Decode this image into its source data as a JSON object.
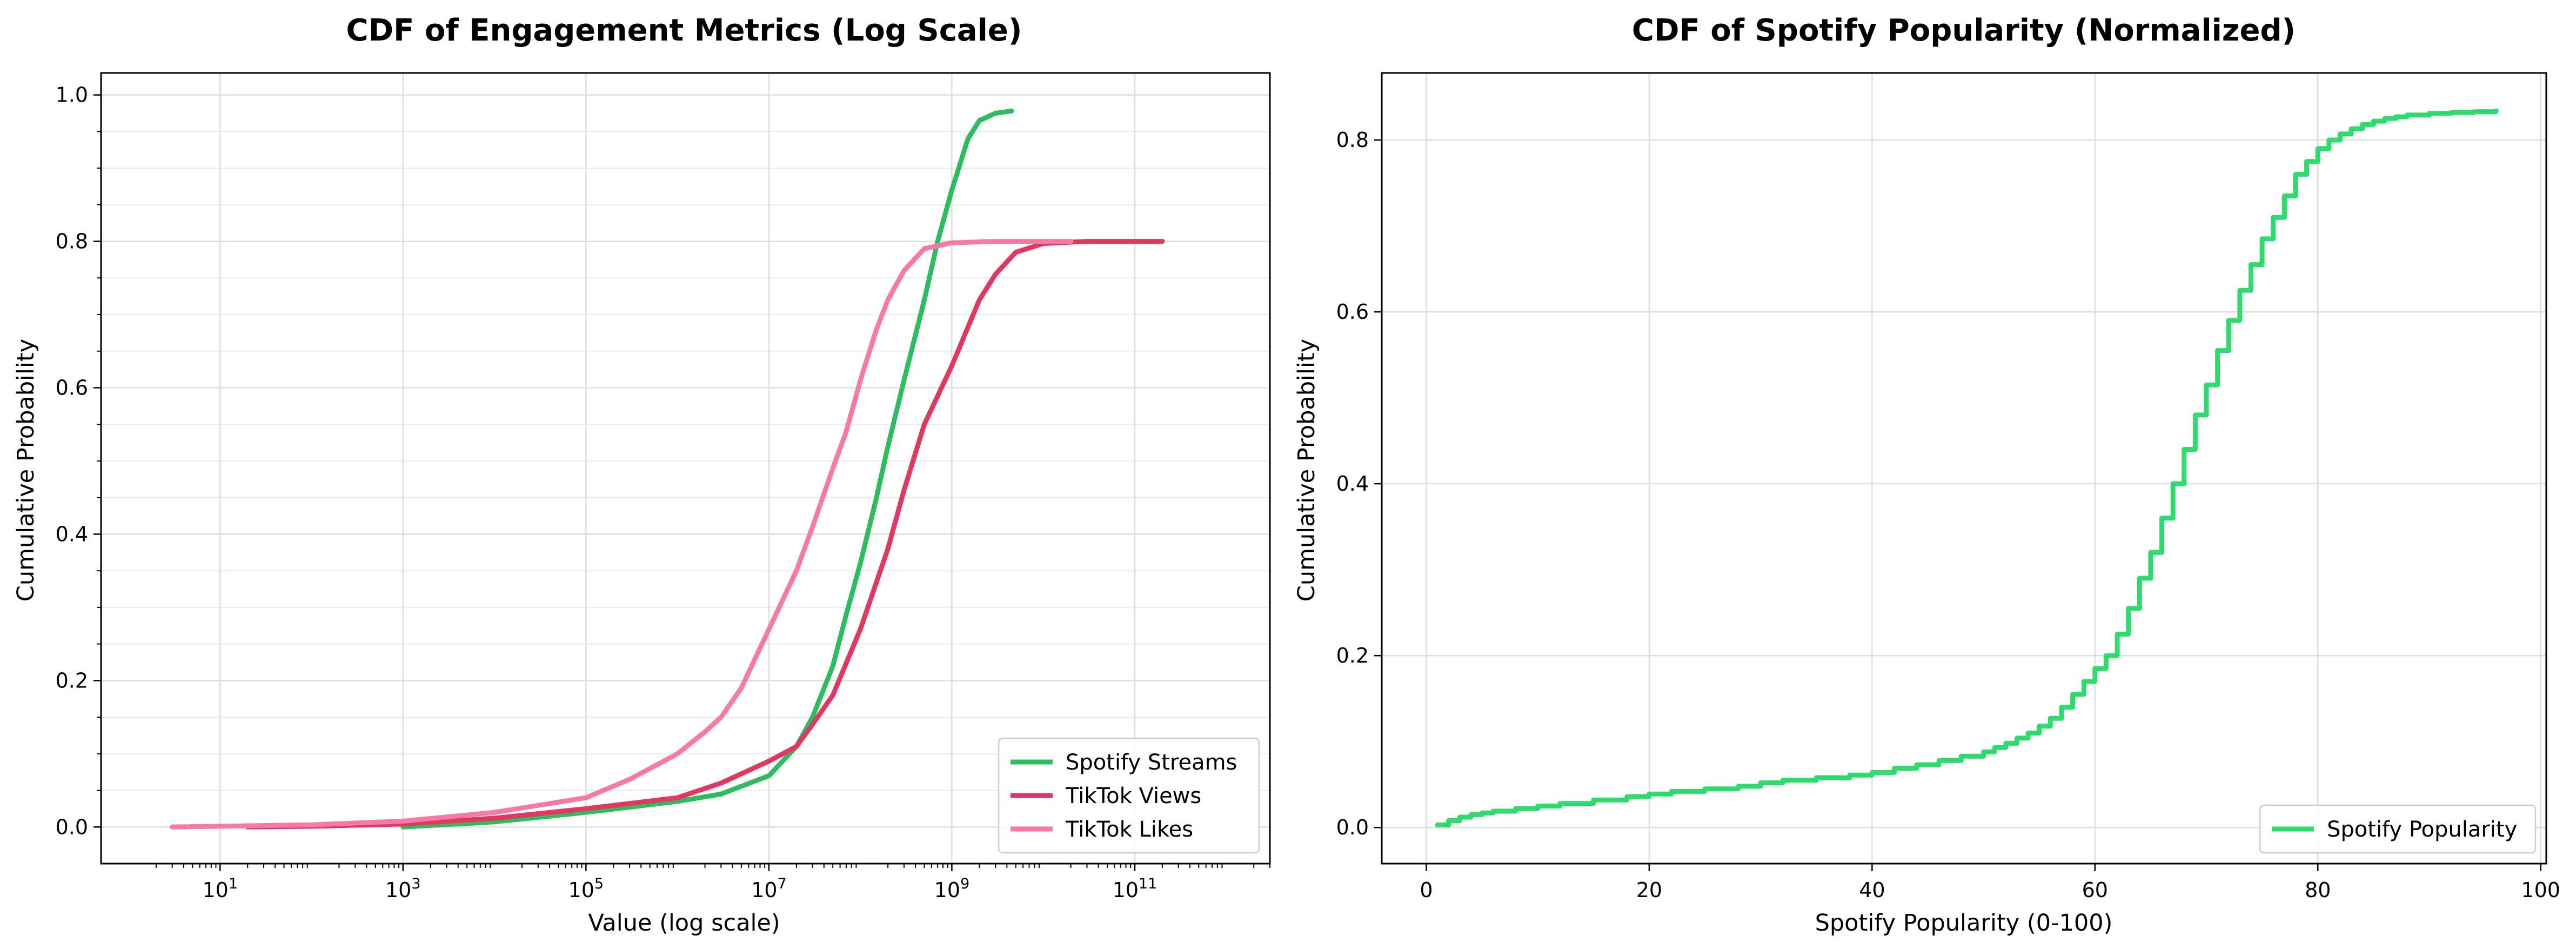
{
  "chart_data": [
    {
      "type": "line",
      "title": "CDF of Engagement Metrics (Log Scale)",
      "xlabel": "Value (log scale)",
      "ylabel": "Cumulative Probability",
      "xscale": "log",
      "xlim": [
        0.5,
        3000000000000
      ],
      "ylim": [
        -0.05,
        1.03
      ],
      "xticks": [
        10,
        1000,
        100000,
        10000000,
        1000000000,
        100000000000
      ],
      "xtick_labels": [
        {
          "base": "10",
          "exp": "1"
        },
        {
          "base": "10",
          "exp": "3"
        },
        {
          "base": "10",
          "exp": "5"
        },
        {
          "base": "10",
          "exp": "7"
        },
        {
          "base": "10",
          "exp": "9"
        },
        {
          "base": "10",
          "exp": "11"
        }
      ],
      "yticks": [
        "0.0",
        "0.2",
        "0.4",
        "0.6",
        "0.8",
        "1.0"
      ],
      "grid": true,
      "legend_position": "lower-right",
      "series": [
        {
          "name": "Spotify Streams",
          "color": "#2ebd5e",
          "x": [
            1000,
            10000,
            100000,
            1000000,
            3000000,
            10000000,
            20000000,
            30000000,
            50000000,
            70000000,
            100000000,
            150000000,
            200000000,
            300000000,
            500000000,
            700000000,
            1000000000,
            1500000000,
            2000000000,
            3000000000,
            4500000000
          ],
          "y": [
            0.0,
            0.007,
            0.02,
            0.035,
            0.045,
            0.07,
            0.11,
            0.15,
            0.22,
            0.29,
            0.36,
            0.45,
            0.52,
            0.61,
            0.72,
            0.8,
            0.87,
            0.94,
            0.965,
            0.975,
            0.978
          ]
        },
        {
          "name": "TikTok Views",
          "color": "#e03861",
          "x": [
            20,
            100,
            1000,
            10000,
            100000,
            1000000,
            3000000,
            10000000,
            20000000,
            30000000,
            50000000,
            100000000,
            200000000,
            300000000,
            500000000,
            1000000000,
            2000000000,
            3000000000,
            5000000000,
            10000000000,
            30000000000,
            200000000000
          ],
          "y": [
            0.0,
            0.001,
            0.004,
            0.012,
            0.025,
            0.04,
            0.06,
            0.09,
            0.11,
            0.14,
            0.18,
            0.27,
            0.38,
            0.46,
            0.55,
            0.63,
            0.72,
            0.755,
            0.785,
            0.797,
            0.8,
            0.8
          ]
        },
        {
          "name": "TikTok Likes",
          "color": "#f77aa6",
          "x": [
            3,
            10,
            100,
            1000,
            10000,
            100000,
            300000,
            1000000,
            2000000,
            3000000,
            5000000,
            10000000,
            20000000,
            30000000,
            50000000,
            70000000,
            100000000,
            150000000,
            200000000,
            300000000,
            500000000,
            1000000000,
            3000000000,
            20000000000
          ],
          "y": [
            0.0,
            0.001,
            0.003,
            0.008,
            0.02,
            0.04,
            0.065,
            0.1,
            0.13,
            0.15,
            0.19,
            0.27,
            0.35,
            0.41,
            0.49,
            0.54,
            0.61,
            0.68,
            0.72,
            0.76,
            0.79,
            0.798,
            0.8,
            0.8
          ]
        }
      ]
    },
    {
      "type": "line",
      "title": "CDF of Spotify Popularity (Normalized)",
      "xlabel": "Spotify Popularity (0-100)",
      "ylabel": "Cumulative Probability",
      "xscale": "linear",
      "xlim": [
        -4,
        100.5
      ],
      "ylim": [
        -0.042,
        0.878
      ],
      "xticks": [
        0,
        20,
        40,
        60,
        80,
        100
      ],
      "yticks": [
        "0.0",
        "0.2",
        "0.4",
        "0.6",
        "0.8"
      ],
      "grid": true,
      "legend_position": "lower-right",
      "series": [
        {
          "name": "Spotify Popularity",
          "color": "#2edc6e",
          "x": [
            1,
            2,
            3,
            4,
            5,
            6,
            8,
            10,
            12,
            15,
            18,
            20,
            22,
            25,
            28,
            30,
            32,
            35,
            38,
            40,
            42,
            44,
            46,
            48,
            50,
            51,
            52,
            53,
            54,
            55,
            56,
            57,
            58,
            59,
            60,
            61,
            62,
            63,
            64,
            65,
            66,
            67,
            68,
            69,
            70,
            71,
            72,
            73,
            74,
            75,
            76,
            77,
            78,
            79,
            80,
            81,
            82,
            83,
            84,
            85,
            86,
            87,
            88,
            90,
            92,
            94,
            96
          ],
          "y": [
            0.003,
            0.008,
            0.012,
            0.015,
            0.017,
            0.019,
            0.022,
            0.025,
            0.028,
            0.032,
            0.036,
            0.039,
            0.042,
            0.045,
            0.048,
            0.052,
            0.055,
            0.058,
            0.061,
            0.064,
            0.069,
            0.073,
            0.078,
            0.083,
            0.088,
            0.093,
            0.098,
            0.104,
            0.11,
            0.118,
            0.127,
            0.14,
            0.155,
            0.17,
            0.185,
            0.2,
            0.225,
            0.255,
            0.29,
            0.32,
            0.36,
            0.4,
            0.44,
            0.48,
            0.515,
            0.555,
            0.59,
            0.625,
            0.655,
            0.685,
            0.71,
            0.735,
            0.76,
            0.775,
            0.79,
            0.8,
            0.807,
            0.813,
            0.818,
            0.822,
            0.825,
            0.827,
            0.829,
            0.831,
            0.832,
            0.833,
            0.834
          ]
        }
      ]
    }
  ]
}
